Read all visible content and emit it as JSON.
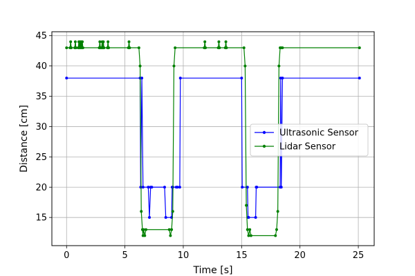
{
  "chart_data": {
    "type": "line",
    "title": "",
    "xlabel": "Time [s]",
    "ylabel": "Distance [cm]",
    "xlim": [
      -1.26,
      26.36
    ],
    "ylim": [
      10.35,
      45.65
    ],
    "xticks": [
      0,
      5,
      10,
      15,
      20,
      25
    ],
    "yticks": [
      15,
      20,
      25,
      30,
      35,
      40,
      45
    ],
    "grid": true,
    "legend_position": "center-right",
    "series": [
      {
        "name": "Ultrasonic Sensor",
        "color": "#0000ff",
        "marker": "circle",
        "x": [
          0,
          6.3,
          6.35,
          6.45,
          6.55,
          7.0,
          7.1,
          7.2,
          7.3,
          8.4,
          8.5,
          9.0,
          9.05,
          9.1,
          9.4,
          9.5,
          9.7,
          9.75,
          15.0,
          15.05,
          15.5,
          15.55,
          15.6,
          16.2,
          16.25,
          16.3,
          18.3,
          18.35,
          18.4,
          18.5,
          25.1
        ],
        "y": [
          38,
          38,
          20,
          38,
          20,
          20,
          15,
          20,
          20,
          20,
          15,
          15,
          20,
          20,
          20,
          20,
          20,
          38,
          38,
          20,
          20,
          15,
          15,
          15,
          20,
          20,
          20,
          38,
          20,
          38,
          38
        ]
      },
      {
        "name": "Lidar Sensor",
        "color": "#008000",
        "marker": "circle",
        "x": [
          0,
          0.3,
          0.35,
          0.4,
          0.7,
          0.75,
          0.8,
          1.0,
          1.05,
          1.1,
          1.15,
          1.2,
          1.25,
          1.3,
          1.35,
          1.4,
          2.8,
          2.85,
          2.9,
          3.0,
          3.05,
          3.1,
          3.15,
          3.2,
          3.5,
          3.55,
          3.6,
          5.3,
          5.35,
          5.4,
          6.2,
          6.3,
          6.4,
          6.5,
          6.55,
          6.6,
          6.7,
          6.8,
          8.8,
          8.9,
          9.0,
          9.1,
          9.2,
          9.3,
          11.8,
          11.85,
          11.9,
          13.0,
          13.05,
          13.1,
          13.6,
          13.65,
          13.7,
          15.2,
          15.3,
          15.4,
          15.5,
          15.6,
          15.7,
          15.8,
          17.9,
          18.0,
          18.1,
          18.2,
          18.3,
          18.4,
          18.5,
          25.1
        ],
        "y": [
          43,
          43,
          44,
          43,
          43,
          44,
          43,
          43,
          44,
          43,
          44,
          43,
          44,
          43,
          44,
          43,
          43,
          44,
          43,
          43,
          44,
          43,
          44,
          43,
          43,
          44,
          43,
          43,
          44,
          43,
          43,
          40,
          16,
          13,
          12,
          13,
          12,
          13,
          13,
          12,
          13,
          16,
          40,
          43,
          43,
          44,
          43,
          43,
          44,
          43,
          43,
          44,
          43,
          43,
          40,
          17,
          13,
          12,
          13,
          12,
          12,
          13,
          16,
          40,
          43,
          43,
          43,
          43
        ]
      }
    ]
  }
}
